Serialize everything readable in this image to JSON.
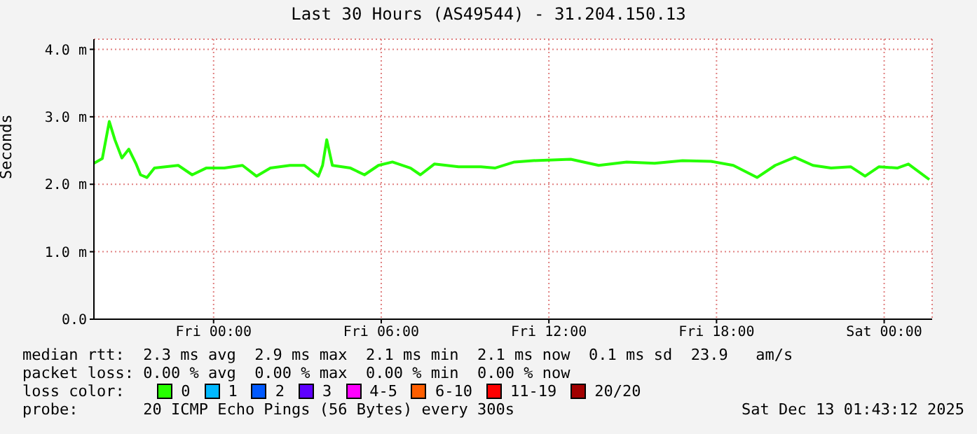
{
  "chart_data": {
    "type": "line",
    "title": "Last 30 Hours (AS49544) - 31.204.150.13",
    "ylabel": "Seconds",
    "xlim": [
      "2025-12-11T19:43",
      "2025-12-13T01:43"
    ],
    "xticks": [
      {
        "value": "2025-12-12T00:00",
        "label": "Fri 00:00"
      },
      {
        "value": "2025-12-12T06:00",
        "label": "Fri 06:00"
      },
      {
        "value": "2025-12-12T12:00",
        "label": "Fri 12:00"
      },
      {
        "value": "2025-12-12T18:00",
        "label": "Fri 18:00"
      },
      {
        "value": "2025-12-13T00:00",
        "label": "Sat 00:00"
      }
    ],
    "ylim": [
      0,
      4.15
    ],
    "yticks": [
      {
        "value": 0,
        "label": "0.0"
      },
      {
        "value": 1,
        "label": "1.0 m"
      },
      {
        "value": 2,
        "label": "2.0 m"
      },
      {
        "value": 3,
        "label": "3.0 m"
      },
      {
        "value": 4,
        "label": "4.0 m"
      }
    ],
    "x": [
      "2025-12-11T19:43",
      "2025-12-11T20:01",
      "2025-12-11T20:16",
      "2025-12-11T20:28",
      "2025-12-11T20:43",
      "2025-12-11T20:58",
      "2025-12-11T21:13",
      "2025-12-11T21:23",
      "2025-12-11T21:37",
      "2025-12-11T21:53",
      "2025-12-11T22:44",
      "2025-12-11T23:14",
      "2025-12-11T23:44",
      "2025-12-12T00:23",
      "2025-12-12T01:02",
      "2025-12-12T01:32",
      "2025-12-12T02:02",
      "2025-12-12T02:44",
      "2025-12-12T03:15",
      "2025-12-12T03:45",
      "2025-12-12T03:54",
      "2025-12-12T04:03",
      "2025-12-12T04:15",
      "2025-12-12T04:54",
      "2025-12-12T05:24",
      "2025-12-12T05:54",
      "2025-12-12T06:24",
      "2025-12-12T07:03",
      "2025-12-12T07:24",
      "2025-12-12T07:54",
      "2025-12-12T08:46",
      "2025-12-12T09:34",
      "2025-12-12T10:04",
      "2025-12-12T10:46",
      "2025-12-12T11:26",
      "2025-12-12T12:47",
      "2025-12-12T13:47",
      "2025-12-12T14:47",
      "2025-12-12T15:47",
      "2025-12-12T16:47",
      "2025-12-12T17:48",
      "2025-12-12T18:36",
      "2025-12-12T19:27",
      "2025-12-12T20:06",
      "2025-12-12T20:48",
      "2025-12-12T21:27",
      "2025-12-12T22:06",
      "2025-12-12T22:48",
      "2025-12-12T23:19",
      "2025-12-12T23:49",
      "2025-12-13T00:28",
      "2025-12-13T00:52",
      "2025-12-13T01:37"
    ],
    "series": [
      {
        "name": "0",
        "color": "#26ff00",
        "values": [
          2.31,
          2.38,
          2.93,
          2.66,
          2.39,
          2.52,
          2.31,
          2.14,
          2.1,
          2.24,
          2.28,
          2.14,
          2.24,
          2.24,
          2.28,
          2.12,
          2.24,
          2.28,
          2.28,
          2.12,
          2.28,
          2.66,
          2.28,
          2.24,
          2.14,
          2.28,
          2.33,
          2.24,
          2.14,
          2.3,
          2.26,
          2.26,
          2.24,
          2.33,
          2.35,
          2.37,
          2.28,
          2.33,
          2.31,
          2.35,
          2.34,
          2.28,
          2.1,
          2.28,
          2.4,
          2.28,
          2.24,
          2.26,
          2.12,
          2.26,
          2.24,
          2.3,
          2.07
        ]
      },
      {
        "name": "1",
        "color": "#00b8ff",
        "values": [
          null,
          null,
          null,
          null,
          null,
          null,
          null,
          null,
          null,
          null,
          null,
          null,
          null,
          null,
          null,
          null,
          null,
          null,
          null,
          null,
          null,
          null,
          null,
          null,
          null,
          null,
          null,
          null,
          null,
          null,
          null,
          null,
          null,
          null,
          null,
          null,
          null,
          null,
          null,
          null,
          null,
          null,
          null,
          null,
          null,
          null,
          null,
          null,
          null,
          null,
          null,
          null,
          null
        ]
      },
      {
        "name": "2",
        "color": "#0059ff",
        "values": [
          null,
          null,
          null,
          null,
          null,
          null,
          null,
          null,
          null,
          null,
          null,
          null,
          null,
          null,
          null,
          null,
          null,
          null,
          null,
          null,
          null,
          null,
          null,
          null,
          null,
          null,
          null,
          null,
          null,
          null,
          null,
          null,
          null,
          null,
          null,
          null,
          null,
          null,
          null,
          null,
          null,
          null,
          null,
          null,
          null,
          null,
          null,
          null,
          null,
          null,
          null,
          null,
          null
        ]
      },
      {
        "name": "3",
        "color": "#5e00ff",
        "values": [
          null,
          null,
          null,
          null,
          null,
          null,
          null,
          null,
          null,
          null,
          null,
          null,
          null,
          null,
          null,
          null,
          null,
          null,
          null,
          null,
          null,
          null,
          null,
          null,
          null,
          null,
          null,
          null,
          null,
          null,
          null,
          null,
          null,
          null,
          null,
          null,
          null,
          null,
          null,
          null,
          null,
          null,
          null,
          null,
          null,
          null,
          null,
          null,
          null,
          null,
          null,
          null,
          null
        ]
      },
      {
        "name": "4-5",
        "color": "#ff00ff",
        "values": [
          null,
          null,
          null,
          null,
          null,
          null,
          null,
          null,
          null,
          null,
          null,
          null,
          null,
          null,
          null,
          null,
          null,
          null,
          null,
          null,
          null,
          null,
          null,
          null,
          null,
          null,
          null,
          null,
          null,
          null,
          null,
          null,
          null,
          null,
          null,
          null,
          null,
          null,
          null,
          null,
          null,
          null,
          null,
          null,
          null,
          null,
          null,
          null,
          null,
          null,
          null,
          null,
          null
        ]
      },
      {
        "name": "6-10",
        "color": "#ff5e00",
        "values": [
          null,
          null,
          null,
          null,
          null,
          null,
          null,
          null,
          null,
          null,
          null,
          null,
          null,
          null,
          null,
          null,
          null,
          null,
          null,
          null,
          null,
          null,
          null,
          null,
          null,
          null,
          null,
          null,
          null,
          null,
          null,
          null,
          null,
          null,
          null,
          null,
          null,
          null,
          null,
          null,
          null,
          null,
          null,
          null,
          null,
          null,
          null,
          null,
          null,
          null,
          null,
          null,
          null
        ]
      },
      {
        "name": "11-19",
        "color": "#ff0000",
        "values": [
          null,
          null,
          null,
          null,
          null,
          null,
          null,
          null,
          null,
          null,
          null,
          null,
          null,
          null,
          null,
          null,
          null,
          null,
          null,
          null,
          null,
          null,
          null,
          null,
          null,
          null,
          null,
          null,
          null,
          null,
          null,
          null,
          null,
          null,
          null,
          null,
          null,
          null,
          null,
          null,
          null,
          null,
          null,
          null,
          null,
          null,
          null,
          null,
          null,
          null,
          null,
          null,
          null
        ]
      },
      {
        "name": "20/20",
        "color": "#a10000",
        "values": [
          null,
          null,
          null,
          null,
          null,
          null,
          null,
          null,
          null,
          null,
          null,
          null,
          null,
          null,
          null,
          null,
          null,
          null,
          null,
          null,
          null,
          null,
          null,
          null,
          null,
          null,
          null,
          null,
          null,
          null,
          null,
          null,
          null,
          null,
          null,
          null,
          null,
          null,
          null,
          null,
          null,
          null,
          null,
          null,
          null,
          null,
          null,
          null,
          null,
          null,
          null,
          null,
          null
        ]
      }
    ],
    "legend_title": "loss color:",
    "legend": "bottom",
    "grid": true,
    "marker": "none",
    "line_style": "solid",
    "annotations": [
      "median rtt:  2.3 ms avg  2.9 ms max  2.1 ms min  2.1 ms now  0.1 ms sd  23.9   am/s",
      "packet loss: 0.00 % avg  0.00 % max  0.00 % min  0.00 % now",
      "probe:       20 ICMP Echo Pings (56 Bytes) every 300s",
      "Sat Dec 13 01:43:12 2025"
    ]
  }
}
